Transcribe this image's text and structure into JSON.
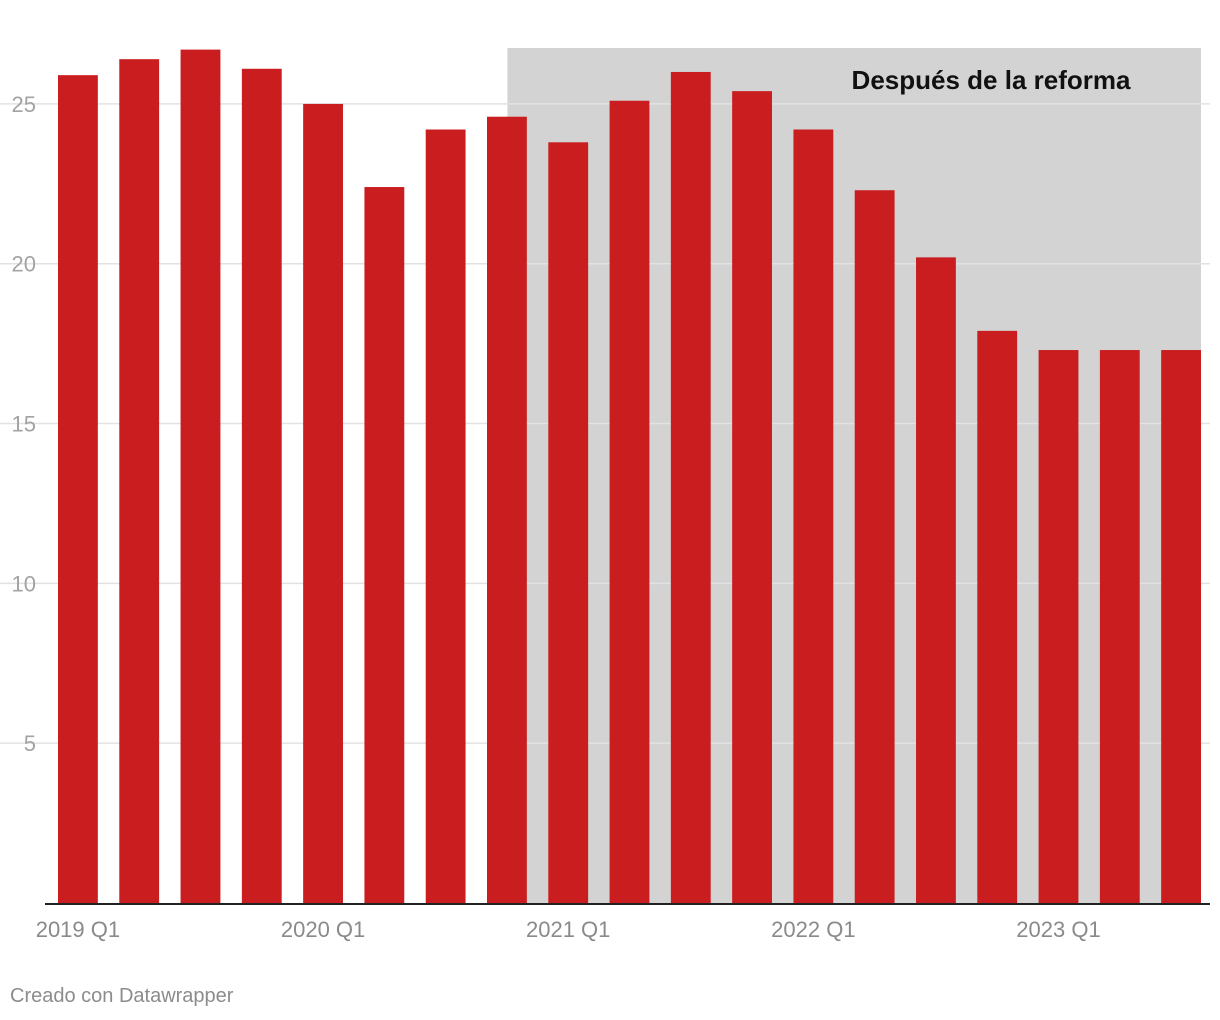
{
  "chart_data": {
    "type": "bar",
    "title": "",
    "xlabel": "",
    "ylabel": "",
    "categories": [
      "2019 Q1",
      "2019 Q2",
      "2019 Q3",
      "2019 Q4",
      "2020 Q1",
      "2020 Q2",
      "2020 Q3",
      "2020 Q4",
      "2021 Q1",
      "2021 Q2",
      "2021 Q3",
      "2021 Q4",
      "2022 Q1",
      "2022 Q2",
      "2022 Q3",
      "2022 Q4",
      "2023 Q1",
      "2023 Q2",
      "2023 Q3"
    ],
    "values": [
      25.9,
      26.4,
      26.7,
      26.1,
      25.0,
      22.4,
      24.2,
      24.6,
      23.8,
      25.1,
      26.0,
      25.4,
      24.2,
      22.3,
      20.2,
      17.9,
      17.3,
      17.3,
      17.3
    ],
    "x_tick_labels": [
      "2019 Q1",
      "2020 Q1",
      "2021 Q1",
      "2022 Q1",
      "2023 Q1"
    ],
    "y_ticks": [
      5,
      10,
      15,
      20,
      25
    ],
    "ylim": [
      0,
      26.75
    ],
    "grid": true,
    "bar_color": "#c91d1f",
    "highlight": {
      "label": "Después de la reforma",
      "start_index": 7.5,
      "end_index": 18.5,
      "color": "#d3d3d3"
    }
  },
  "footer": {
    "credit": "Creado con Datawrapper"
  }
}
